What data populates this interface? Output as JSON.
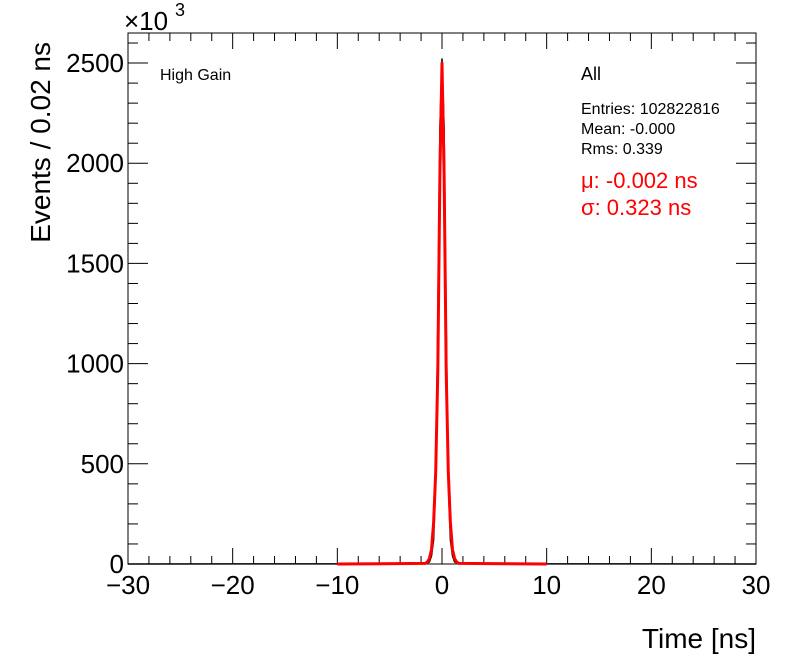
{
  "chart_data": {
    "type": "line",
    "xlabel": "Time [ns]",
    "ylabel": "Events / 0.02 ns",
    "y_multiplier": "×10",
    "y_multiplier_exp": "3",
    "xlim": [
      -30,
      30
    ],
    "ylim": [
      0,
      2650
    ],
    "x_ticks": [
      -30,
      -20,
      -10,
      0,
      10,
      20,
      30
    ],
    "x_tick_labels": [
      "−30",
      "−20",
      "−10",
      "0",
      "10",
      "20",
      "30"
    ],
    "y_ticks": [
      0,
      500,
      1000,
      1500,
      2000,
      2500
    ],
    "y_tick_labels": [
      "0",
      "500",
      "1000",
      "1500",
      "2000",
      "2500"
    ],
    "grid": false,
    "label_left": "High Gain",
    "stats": {
      "title": "All",
      "entries": "Entries: 102822816",
      "mean": "Mean: -0.000",
      "rms": "Rms: 0.339"
    },
    "fit_labels": {
      "mu": "μ: -0.002 ns",
      "sigma": "σ: 0.323 ns"
    },
    "colors": {
      "histogram": "#000000",
      "fit": "#ff0000",
      "fit_text": "#ff0000"
    },
    "series": [
      {
        "x": [
          -30,
          -1.6,
          -1.2,
          -1.0,
          -0.8,
          -0.6,
          -0.4,
          -0.2,
          0.0,
          0.2,
          0.4,
          0.6,
          0.8,
          1.0,
          1.2,
          1.6,
          30
        ],
        "y": [
          0,
          1,
          10,
          40,
          120,
          400,
          1200,
          2180,
          2520,
          2180,
          1200,
          400,
          120,
          40,
          10,
          1,
          0
        ]
      },
      {
        "name": "fit",
        "x": [
          -10,
          -1.6,
          -1.4,
          -1.2,
          -1.0,
          -0.8,
          -0.6,
          -0.4,
          -0.2,
          0.0,
          0.2,
          0.4,
          0.6,
          0.8,
          1.0,
          1.2,
          1.4,
          1.6,
          10
        ],
        "y": [
          0,
          3,
          10,
          27,
          73,
          205,
          458,
          960,
          1950,
          2500,
          1950,
          960,
          458,
          205,
          73,
          27,
          10,
          3,
          0
        ]
      }
    ]
  }
}
